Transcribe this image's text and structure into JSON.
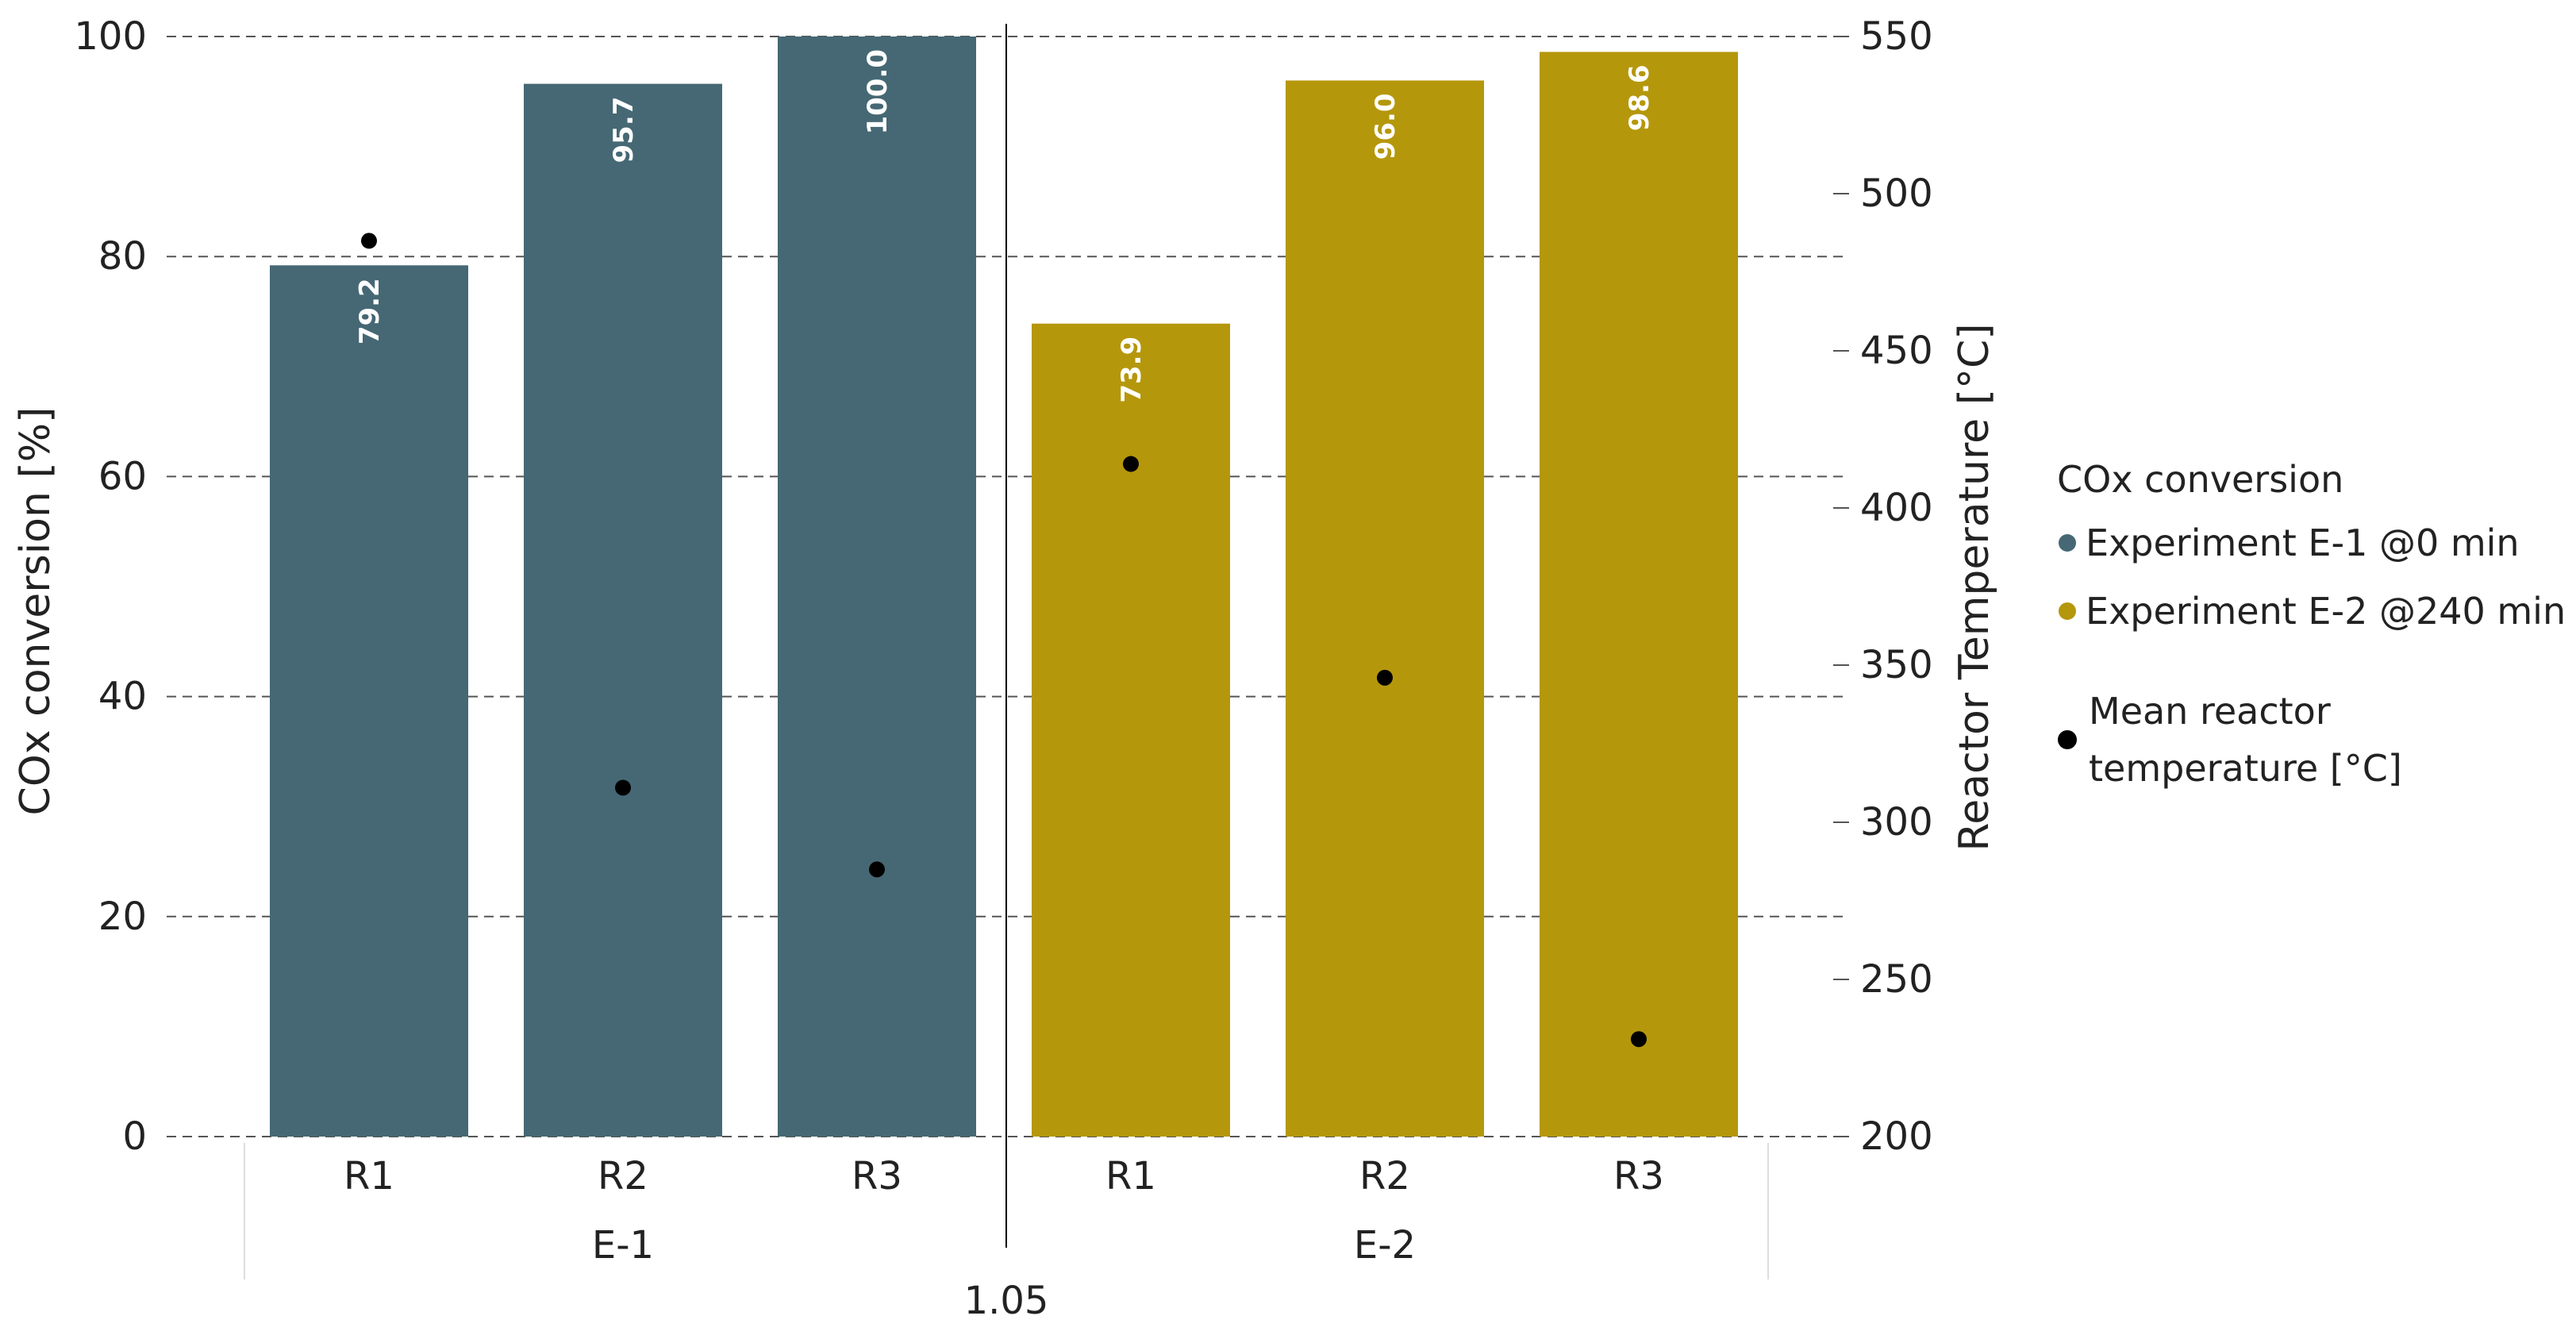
{
  "chart_data": {
    "type": "bar",
    "groups": [
      "E-1",
      "E-2"
    ],
    "categories": [
      "R1",
      "R2",
      "R3"
    ],
    "series": [
      {
        "name": "Experiment E-1 @0 min",
        "group": "E-1",
        "color": "#456874",
        "values": [
          79.2,
          95.7,
          100.0
        ],
        "labels": [
          "79.2",
          "95.7",
          "100.0"
        ]
      },
      {
        "name": "Experiment E-2 @240 min",
        "group": "E-2",
        "color": "#b5970c",
        "values": [
          73.9,
          96.0,
          98.6
        ],
        "labels": [
          "73.9",
          "96.0",
          "98.6"
        ]
      }
    ],
    "temperature": {
      "name": "Mean reactor temperature [°C]",
      "color": "#000000",
      "values": [
        [
          485,
          311,
          285
        ],
        [
          414,
          346,
          231
        ]
      ]
    },
    "ylabel": "COx conversion [%]",
    "ylim": [
      0,
      100
    ],
    "yticks": [
      "0",
      "20",
      "40",
      "60",
      "80",
      "100"
    ],
    "y2label": "Reactor Temperature [°C]",
    "y2lim": [
      200,
      550
    ],
    "y2ticks": [
      "200",
      "250",
      "300",
      "350",
      "400",
      "450",
      "500",
      "550"
    ],
    "xnote": "1.05",
    "legend": {
      "title": "COx conversion",
      "items": [
        "Experiment E-1 @0 min",
        "Experiment E-2 @240 min"
      ],
      "marker_label_lines": [
        "Mean reactor",
        "temperature [°C]"
      ],
      "position": "right"
    },
    "grid": "horizontal dashed"
  }
}
